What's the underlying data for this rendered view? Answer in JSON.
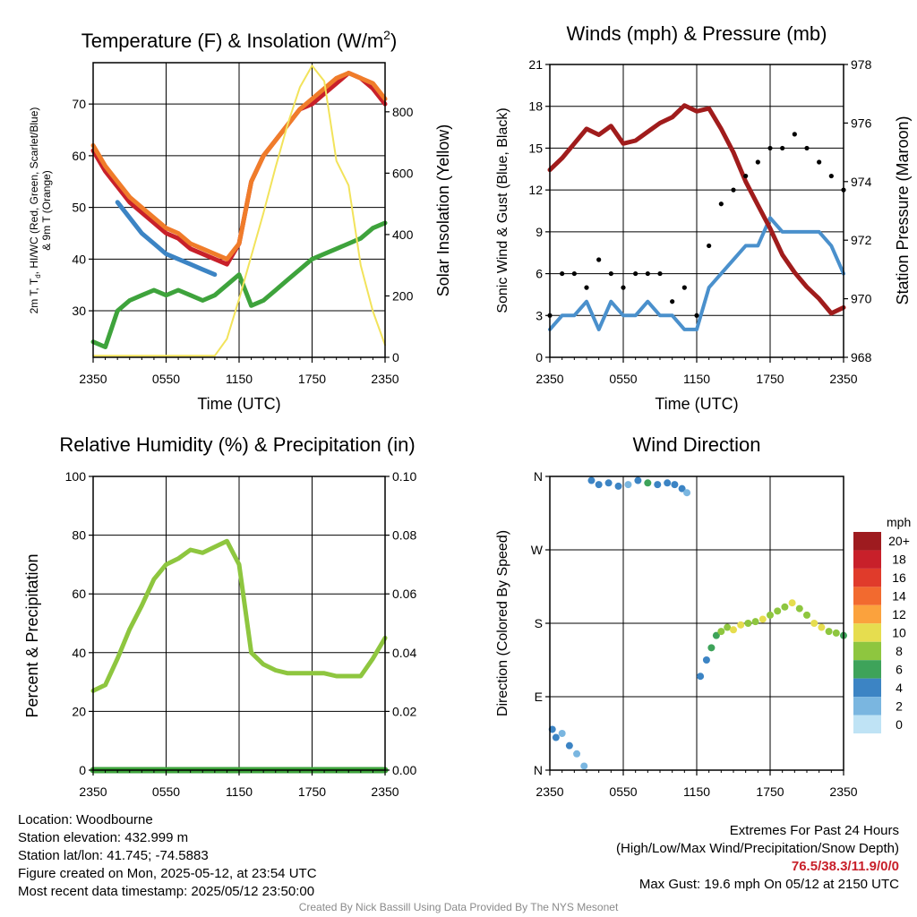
{
  "charts": {
    "temp": {
      "title": "Temperature (F) & Insolation (W/m",
      "title_sup": "2",
      "title_end": ")",
      "ylabel_lines": [
        "2m T, T",
        "d",
        ", HI/WC (Red, Green, Scarlet/Blue)",
        "& 9m T (Orange)"
      ],
      "y2label": "Solar Insolation (Yellow)",
      "xlabel": "Time (UTC)",
      "yticks": [
        "30",
        "40",
        "50",
        "60",
        "70"
      ],
      "y2ticks": [
        "0",
        "200",
        "400",
        "600",
        "800"
      ],
      "xticks": [
        "2350",
        "0550",
        "1150",
        "1750",
        "2350"
      ]
    },
    "winds": {
      "title": "Winds (mph) & Pressure (mb)",
      "ylabel": "Sonic Wind & Gust (Blue, Black)",
      "y2label": "Station Pressure (Maroon)",
      "xlabel": "Time (UTC)",
      "yticks": [
        "0",
        "3",
        "6",
        "9",
        "12",
        "15",
        "18",
        "21"
      ],
      "y2ticks": [
        "968",
        "970",
        "972",
        "974",
        "976",
        "978"
      ],
      "xticks": [
        "2350",
        "0550",
        "1150",
        "1750",
        "2350"
      ]
    },
    "rh": {
      "title": "Relative Humidity (%) & Precipitation (in)",
      "ylabel": "Percent & Precipitation",
      "yticks": [
        "0",
        "20",
        "40",
        "60",
        "80",
        "100"
      ],
      "y2ticks": [
        "0.00",
        "0.02",
        "0.04",
        "0.06",
        "0.08",
        "0.10"
      ],
      "xticks": [
        "2350",
        "0550",
        "1150",
        "1750",
        "2350"
      ]
    },
    "wdir": {
      "title": "Wind Direction",
      "ylabel": "Direction (Colored By Speed)",
      "yticks": [
        "N",
        "E",
        "S",
        "W",
        "N"
      ],
      "xticks": [
        "2350",
        "0550",
        "1150",
        "1750",
        "2350"
      ],
      "legend_title": "mph",
      "legend_labels": [
        "20+",
        "18",
        "16",
        "14",
        "12",
        "10",
        "8",
        "6",
        "4",
        "2",
        "0"
      ],
      "legend_colors": [
        "#9e1b1f",
        "#c8202a",
        "#e03b2b",
        "#f26a2f",
        "#fba23d",
        "#e6dd4f",
        "#8ec63f",
        "#3ea35a",
        "#3c84c4",
        "#7ab6e0",
        "#bfe3f5"
      ]
    }
  },
  "chart_data": [
    {
      "type": "line",
      "title": "Temperature (F) & Insolation (W/m2)",
      "xlabel": "Time (UTC)",
      "ylabel": "2m T, Td, HI/WC (Red, Green, Scarlet/Blue) & 9m T (Orange)",
      "y2label": "Solar Insolation (Yellow)",
      "ylim": [
        21,
        78
      ],
      "y2lim": [
        0,
        960
      ],
      "categories": [
        "2350",
        "0550",
        "1150",
        "1750",
        "2350"
      ],
      "x": [
        0,
        1,
        2,
        3,
        4,
        5,
        6,
        7,
        8,
        9,
        10,
        11,
        12,
        13,
        14,
        15,
        16,
        17,
        18,
        19,
        20,
        21,
        22,
        23,
        24
      ],
      "series": [
        {
          "name": "2m T",
          "color": "#c8202a",
          "values": [
            61,
            57,
            54,
            51,
            49,
            47,
            45,
            44,
            42,
            41,
            40,
            39,
            43,
            55,
            60,
            63,
            66,
            69,
            70,
            72,
            74,
            76,
            75,
            73,
            70
          ]
        },
        {
          "name": "9m T",
          "color": "#f07c2a",
          "values": [
            62,
            58,
            55,
            52,
            50,
            48,
            46,
            45,
            43,
            42,
            41,
            40,
            43,
            55,
            60,
            63,
            66,
            69,
            71,
            73,
            75,
            76,
            75,
            74,
            71
          ]
        },
        {
          "name": "Td",
          "color": "#3ea33c",
          "values": [
            24,
            23,
            30,
            32,
            33,
            34,
            33,
            34,
            33,
            32,
            33,
            35,
            37,
            31,
            32,
            34,
            36,
            38,
            40,
            41,
            42,
            43,
            44,
            46,
            47
          ]
        },
        {
          "name": "WC",
          "color": "#3c84c4",
          "values": [
            null,
            null,
            51,
            48,
            45,
            43,
            41,
            40,
            39,
            38,
            37,
            null,
            null,
            null,
            null,
            null,
            null,
            null,
            null,
            null,
            null,
            null,
            null,
            null,
            null
          ]
        },
        {
          "name": "Solar",
          "axis": "y2",
          "color": "#f2e35b",
          "values": [
            5,
            5,
            5,
            5,
            5,
            5,
            5,
            5,
            5,
            5,
            5,
            60,
            190,
            330,
            470,
            620,
            760,
            880,
            950,
            900,
            640,
            560,
            300,
            150,
            40
          ]
        }
      ]
    },
    {
      "type": "line",
      "title": "Winds (mph) & Pressure (mb)",
      "xlabel": "Time (UTC)",
      "ylabel": "Sonic Wind & Gust (Blue, Black)",
      "y2label": "Station Pressure (Maroon)",
      "ylim": [
        0,
        21
      ],
      "y2lim": [
        968,
        978
      ],
      "categories": [
        "2350",
        "0550",
        "1150",
        "1750",
        "2350"
      ],
      "x": [
        0,
        1,
        2,
        3,
        4,
        5,
        6,
        7,
        8,
        9,
        10,
        11,
        12,
        13,
        14,
        15,
        16,
        17,
        18,
        19,
        20,
        21,
        22,
        23,
        24
      ],
      "series": [
        {
          "name": "Sonic Wind",
          "color": "#4a90cc",
          "values": [
            2,
            3,
            3,
            4,
            2,
            4,
            3,
            3,
            4,
            3,
            3,
            2,
            2,
            5,
            6,
            7,
            8,
            8,
            10,
            9,
            9,
            9,
            9,
            8,
            6
          ]
        },
        {
          "name": "Gust",
          "color": "#000000",
          "style": "points",
          "values": [
            3,
            6,
            6,
            5,
            7,
            6,
            5,
            6,
            6,
            6,
            4,
            5,
            3,
            8,
            11,
            12,
            13,
            14,
            15,
            15,
            16,
            15,
            14,
            13,
            12
          ]
        },
        {
          "name": "Station Pressure",
          "axis": "y2",
          "color": "#a01c1c",
          "values": [
            974.4,
            974.8,
            975.3,
            975.8,
            975.6,
            975.9,
            975.3,
            975.4,
            975.7,
            976.0,
            976.2,
            976.6,
            976.4,
            976.5,
            975.8,
            975.0,
            974.0,
            973.2,
            972.4,
            971.5,
            970.9,
            970.4,
            970.0,
            969.5,
            969.7
          ]
        }
      ]
    },
    {
      "type": "line",
      "title": "Relative Humidity (%) & Precipitation (in)",
      "ylabel": "Percent & Precipitation",
      "ylim": [
        0,
        100
      ],
      "y2lim": [
        0.0,
        0.1
      ],
      "categories": [
        "2350",
        "0550",
        "1150",
        "1750",
        "2350"
      ],
      "x": [
        0,
        1,
        2,
        3,
        4,
        5,
        6,
        7,
        8,
        9,
        10,
        11,
        12,
        13,
        14,
        15,
        16,
        17,
        18,
        19,
        20,
        21,
        22,
        23,
        24
      ],
      "series": [
        {
          "name": "RH",
          "color": "#8ec63f",
          "values": [
            27,
            29,
            38,
            48,
            56,
            65,
            70,
            72,
            75,
            74,
            76,
            78,
            70,
            40,
            36,
            34,
            33,
            33,
            33,
            33,
            32,
            32,
            32,
            38,
            45
          ]
        },
        {
          "name": "Precipitation",
          "axis": "y2",
          "color": "#3ea33c",
          "values": [
            0,
            0,
            0,
            0,
            0,
            0,
            0,
            0,
            0,
            0,
            0,
            0,
            0,
            0,
            0,
            0,
            0,
            0,
            0,
            0,
            0,
            0,
            0,
            0,
            0
          ]
        }
      ]
    },
    {
      "type": "scatter",
      "title": "Wind Direction",
      "ylabel": "Direction (Colored By Speed)",
      "categories": [
        "2350",
        "0550",
        "1150",
        "1750",
        "2350"
      ],
      "x": [
        0.2,
        0.5,
        1.0,
        1.6,
        2.2,
        2.8,
        3.4,
        4.0,
        4.8,
        5.6,
        6.4,
        7.2,
        8.0,
        8.8,
        9.6,
        10.2,
        10.8,
        11.2,
        12.3,
        12.8,
        13.2,
        13.6,
        14.0,
        14.5,
        15.0,
        15.6,
        16.2,
        16.8,
        17.4,
        18.0,
        18.6,
        19.2,
        19.8,
        20.4,
        21.0,
        21.6,
        22.2,
        22.8,
        23.4,
        24.0
      ],
      "values": [
        50,
        40,
        45,
        30,
        20,
        5,
        355,
        350,
        352,
        348,
        350,
        355,
        352,
        350,
        352,
        350,
        345,
        340,
        115,
        135,
        150,
        165,
        170,
        175,
        172,
        178,
        180,
        182,
        185,
        190,
        195,
        200,
        205,
        198,
        190,
        180,
        175,
        170,
        168,
        165
      ],
      "speed": [
        4,
        3,
        2,
        3,
        2,
        1,
        3,
        4,
        4,
        3,
        2,
        4,
        5,
        4,
        3,
        4,
        3,
        2,
        4,
        4,
        5,
        6,
        7,
        8,
        9,
        10,
        8,
        7,
        9,
        8,
        7,
        8,
        9,
        7,
        8,
        10,
        9,
        8,
        7,
        6
      ],
      "yaxis": "direction"
    }
  ],
  "info": {
    "location": "Location: Woodbourne",
    "elevation": "Station elevation: 432.999 m",
    "latlon": "Station lat/lon: 41.745; -74.5883",
    "created": "Figure created on Mon, 2025-05-12, at 23:54 UTC",
    "recent": "Most recent data timestamp: 2025/05/12 23:50:00",
    "extremes_title": "Extremes For Past 24 Hours",
    "extremes_sub": "(High/Low/Max Wind/Precipitation/Snow Depth)",
    "extremes_values": "76.5/38.3/11.9/0/0",
    "max_gust": "Max Gust: 19.6 mph On 05/12 at 2150 UTC"
  },
  "credit": "Created By Nick Bassill Using Data Provided By The NYS Mesonet"
}
